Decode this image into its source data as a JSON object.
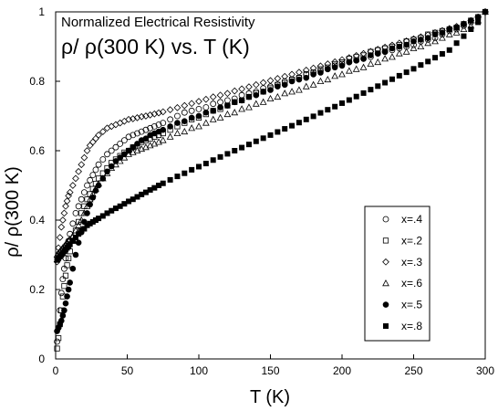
{
  "chart_data": {
    "type": "scatter",
    "title": "Normalized Electrical Resistivity",
    "subtitle": "ρ/ ρ(300 K) vs. T (K)",
    "xlabel": "T (K)",
    "ylabel": "ρ/ ρ(300 K)",
    "xlim": [
      0,
      300
    ],
    "ylim": [
      0,
      1
    ],
    "xticks": [
      "0",
      "50",
      "100",
      "150",
      "200",
      "250",
      "300"
    ],
    "yticks": [
      "0",
      "0.2",
      "0.4",
      "0.6",
      "0.8",
      "1"
    ],
    "grid": false,
    "legend": "lower-right",
    "series": [
      {
        "name": "x=.4",
        "marker": "circle-open",
        "x": [
          1,
          2,
          3,
          4,
          5,
          6,
          7,
          8,
          9,
          10,
          12,
          14,
          16,
          18,
          20,
          22,
          24,
          26,
          28,
          30,
          33,
          36,
          39,
          42,
          45,
          48,
          51,
          54,
          57,
          60,
          63,
          66,
          69,
          72,
          75,
          80,
          85,
          90,
          95,
          100,
          105,
          110,
          115,
          120,
          125,
          130,
          135,
          140,
          145,
          150,
          155,
          160,
          165,
          170,
          175,
          180,
          185,
          190,
          195,
          200,
          205,
          210,
          215,
          220,
          225,
          230,
          235,
          240,
          245,
          250,
          255,
          260,
          265,
          270,
          275,
          280,
          285,
          290,
          295,
          300
        ],
        "y": [
          0.05,
          0.09,
          0.14,
          0.19,
          0.23,
          0.26,
          0.29,
          0.32,
          0.34,
          0.36,
          0.39,
          0.42,
          0.44,
          0.46,
          0.48,
          0.5,
          0.515,
          0.53,
          0.545,
          0.56,
          0.575,
          0.59,
          0.6,
          0.61,
          0.62,
          0.63,
          0.64,
          0.645,
          0.65,
          0.655,
          0.66,
          0.665,
          0.67,
          0.675,
          0.68,
          0.69,
          0.7,
          0.71,
          0.715,
          0.72,
          0.725,
          0.735,
          0.74,
          0.745,
          0.75,
          0.76,
          0.765,
          0.77,
          0.78,
          0.785,
          0.79,
          0.8,
          0.805,
          0.81,
          0.82,
          0.825,
          0.83,
          0.835,
          0.845,
          0.85,
          0.855,
          0.86,
          0.865,
          0.87,
          0.88,
          0.885,
          0.89,
          0.895,
          0.9,
          0.905,
          0.915,
          0.92,
          0.925,
          0.935,
          0.945,
          0.95,
          0.96,
          0.97,
          0.985,
          1.0
        ]
      },
      {
        "name": "x=.2",
        "marker": "square-open",
        "x": [
          1,
          2,
          3,
          4,
          5,
          6,
          7,
          8,
          9,
          10,
          12,
          14,
          16,
          18,
          20,
          22,
          24,
          26,
          28,
          30,
          33,
          36,
          39,
          42,
          45,
          48,
          51,
          54,
          57,
          60,
          63,
          66,
          69,
          72,
          75,
          80,
          85,
          90,
          95,
          100,
          105,
          110,
          115,
          120,
          125,
          130,
          135,
          140,
          145,
          150,
          155,
          160,
          165,
          170,
          175,
          180,
          185,
          190,
          195,
          200,
          205,
          210,
          215,
          220,
          225,
          230,
          235,
          240,
          245,
          250,
          255,
          260,
          265,
          270,
          275,
          280,
          285,
          290,
          295,
          300
        ],
        "y": [
          0.03,
          0.06,
          0.1,
          0.14,
          0.18,
          0.21,
          0.24,
          0.27,
          0.29,
          0.31,
          0.34,
          0.37,
          0.395,
          0.42,
          0.44,
          0.46,
          0.475,
          0.49,
          0.505,
          0.52,
          0.535,
          0.55,
          0.565,
          0.575,
          0.585,
          0.595,
          0.6,
          0.61,
          0.615,
          0.625,
          0.63,
          0.635,
          0.64,
          0.645,
          0.65,
          0.66,
          0.67,
          0.68,
          0.69,
          0.695,
          0.705,
          0.715,
          0.72,
          0.73,
          0.74,
          0.745,
          0.755,
          0.765,
          0.77,
          0.78,
          0.79,
          0.795,
          0.805,
          0.81,
          0.82,
          0.825,
          0.835,
          0.84,
          0.85,
          0.855,
          0.865,
          0.87,
          0.875,
          0.885,
          0.89,
          0.895,
          0.9,
          0.905,
          0.915,
          0.92,
          0.925,
          0.935,
          0.94,
          0.945,
          0.95,
          0.955,
          0.965,
          0.975,
          0.985,
          1.0
        ]
      },
      {
        "name": "x=.3",
        "marker": "diamond-open",
        "x": [
          1,
          2,
          3,
          4,
          5,
          6,
          7,
          8,
          9,
          10,
          12,
          14,
          16,
          18,
          20,
          22,
          24,
          26,
          28,
          30,
          33,
          36,
          39,
          42,
          45,
          48,
          51,
          54,
          57,
          60,
          63,
          66,
          69,
          72,
          75,
          80,
          85,
          90,
          95,
          100,
          105,
          110,
          115,
          120,
          125,
          130,
          135,
          140,
          145,
          150,
          155,
          160,
          165,
          170,
          175,
          180,
          185,
          190,
          195,
          200,
          205,
          210,
          215,
          220,
          225,
          230,
          235,
          240,
          245,
          250,
          255,
          260,
          265,
          270,
          275,
          280,
          285,
          290,
          295,
          300
        ],
        "y": [
          0.28,
          0.32,
          0.35,
          0.38,
          0.4,
          0.42,
          0.44,
          0.455,
          0.47,
          0.48,
          0.5,
          0.52,
          0.54,
          0.56,
          0.58,
          0.6,
          0.615,
          0.625,
          0.635,
          0.645,
          0.655,
          0.665,
          0.67,
          0.675,
          0.68,
          0.685,
          0.69,
          0.692,
          0.695,
          0.698,
          0.7,
          0.703,
          0.706,
          0.709,
          0.712,
          0.718,
          0.724,
          0.73,
          0.736,
          0.742,
          0.748,
          0.755,
          0.76,
          0.765,
          0.772,
          0.778,
          0.784,
          0.79,
          0.796,
          0.802,
          0.808,
          0.814,
          0.82,
          0.826,
          0.832,
          0.838,
          0.844,
          0.85,
          0.856,
          0.862,
          0.868,
          0.874,
          0.88,
          0.886,
          0.892,
          0.898,
          0.904,
          0.91,
          0.916,
          0.922,
          0.928,
          0.934,
          0.94,
          0.946,
          0.952,
          0.958,
          0.965,
          0.975,
          0.985,
          1.0
        ]
      },
      {
        "name": "x=.6",
        "marker": "triangle-open",
        "x": [
          1,
          2,
          3,
          4,
          5,
          6,
          7,
          8,
          9,
          10,
          12,
          14,
          16,
          18,
          20,
          22,
          24,
          26,
          28,
          30,
          33,
          36,
          39,
          42,
          45,
          48,
          51,
          54,
          57,
          60,
          63,
          66,
          69,
          72,
          75,
          80,
          85,
          90,
          95,
          100,
          105,
          110,
          115,
          120,
          125,
          130,
          135,
          140,
          145,
          150,
          155,
          160,
          165,
          170,
          175,
          180,
          185,
          190,
          195,
          200,
          205,
          210,
          215,
          220,
          225,
          230,
          235,
          240,
          245,
          250,
          255,
          260,
          265,
          270,
          275,
          280,
          285,
          290,
          295,
          300
        ],
        "y": [
          0.3,
          0.305,
          0.31,
          0.315,
          0.32,
          0.325,
          0.33,
          0.335,
          0.34,
          0.345,
          0.355,
          0.37,
          0.385,
          0.4,
          0.42,
          0.44,
          0.46,
          0.475,
          0.49,
          0.505,
          0.52,
          0.535,
          0.55,
          0.56,
          0.57,
          0.58,
          0.59,
          0.595,
          0.6,
          0.605,
          0.61,
          0.615,
          0.62,
          0.625,
          0.63,
          0.64,
          0.65,
          0.655,
          0.665,
          0.67,
          0.68,
          0.69,
          0.695,
          0.705,
          0.71,
          0.72,
          0.725,
          0.735,
          0.74,
          0.75,
          0.755,
          0.765,
          0.77,
          0.775,
          0.785,
          0.79,
          0.8,
          0.805,
          0.815,
          0.82,
          0.83,
          0.835,
          0.84,
          0.85,
          0.855,
          0.865,
          0.87,
          0.88,
          0.885,
          0.895,
          0.9,
          0.91,
          0.915,
          0.925,
          0.935,
          0.94,
          0.95,
          0.96,
          0.975,
          1.0
        ]
      },
      {
        "name": "x=.5",
        "marker": "circle-filled",
        "x": [
          1,
          2,
          3,
          4,
          5,
          6,
          7,
          8,
          9,
          10,
          12,
          14,
          16,
          18,
          20,
          22,
          24,
          26,
          28,
          30,
          33,
          36,
          39,
          42,
          45,
          48,
          51,
          54,
          57,
          60,
          63,
          66,
          69,
          72,
          75,
          80,
          85,
          90,
          95,
          100,
          105,
          110,
          115,
          120,
          125,
          130,
          135,
          140,
          145,
          150,
          155,
          160,
          165,
          170,
          175,
          180,
          185,
          190,
          195,
          200,
          205,
          210,
          215,
          220,
          225,
          230,
          235,
          240,
          245,
          250,
          255,
          260,
          265,
          270,
          275,
          280,
          285,
          290,
          295,
          300
        ],
        "y": [
          0.08,
          0.09,
          0.1,
          0.11,
          0.125,
          0.14,
          0.16,
          0.18,
          0.2,
          0.22,
          0.26,
          0.3,
          0.335,
          0.365,
          0.395,
          0.42,
          0.445,
          0.465,
          0.485,
          0.5,
          0.52,
          0.54,
          0.555,
          0.57,
          0.58,
          0.59,
          0.6,
          0.61,
          0.62,
          0.63,
          0.635,
          0.645,
          0.65,
          0.655,
          0.66,
          0.67,
          0.68,
          0.685,
          0.695,
          0.7,
          0.71,
          0.715,
          0.725,
          0.73,
          0.74,
          0.745,
          0.755,
          0.76,
          0.77,
          0.775,
          0.785,
          0.79,
          0.8,
          0.805,
          0.81,
          0.82,
          0.825,
          0.835,
          0.84,
          0.845,
          0.855,
          0.86,
          0.865,
          0.875,
          0.88,
          0.885,
          0.895,
          0.9,
          0.905,
          0.915,
          0.92,
          0.925,
          0.935,
          0.94,
          0.95,
          0.955,
          0.965,
          0.975,
          0.985,
          1.0
        ]
      },
      {
        "name": "x=.8",
        "marker": "square-filled",
        "x": [
          1,
          2,
          3,
          4,
          5,
          6,
          7,
          8,
          9,
          10,
          12,
          14,
          16,
          18,
          20,
          22,
          24,
          26,
          28,
          30,
          33,
          36,
          39,
          42,
          45,
          48,
          51,
          54,
          57,
          60,
          63,
          66,
          69,
          72,
          75,
          80,
          85,
          90,
          95,
          100,
          105,
          110,
          115,
          120,
          125,
          130,
          135,
          140,
          145,
          150,
          155,
          160,
          165,
          170,
          175,
          180,
          185,
          190,
          195,
          200,
          205,
          210,
          215,
          220,
          225,
          230,
          235,
          240,
          245,
          250,
          255,
          260,
          265,
          270,
          275,
          280,
          285,
          290,
          295,
          300
        ],
        "y": [
          0.285,
          0.29,
          0.295,
          0.3,
          0.305,
          0.31,
          0.315,
          0.32,
          0.325,
          0.33,
          0.34,
          0.35,
          0.36,
          0.37,
          0.375,
          0.385,
          0.39,
          0.395,
          0.4,
          0.405,
          0.412,
          0.42,
          0.427,
          0.434,
          0.44,
          0.447,
          0.454,
          0.46,
          0.467,
          0.474,
          0.48,
          0.487,
          0.493,
          0.5,
          0.506,
          0.516,
          0.526,
          0.535,
          0.545,
          0.554,
          0.563,
          0.573,
          0.582,
          0.591,
          0.6,
          0.609,
          0.618,
          0.627,
          0.636,
          0.645,
          0.654,
          0.663,
          0.672,
          0.681,
          0.69,
          0.699,
          0.709,
          0.718,
          0.727,
          0.737,
          0.746,
          0.756,
          0.766,
          0.776,
          0.786,
          0.796,
          0.806,
          0.816,
          0.826,
          0.836,
          0.847,
          0.857,
          0.868,
          0.879,
          0.89,
          0.91,
          0.93,
          0.95,
          0.97,
          1.0
        ]
      }
    ]
  }
}
